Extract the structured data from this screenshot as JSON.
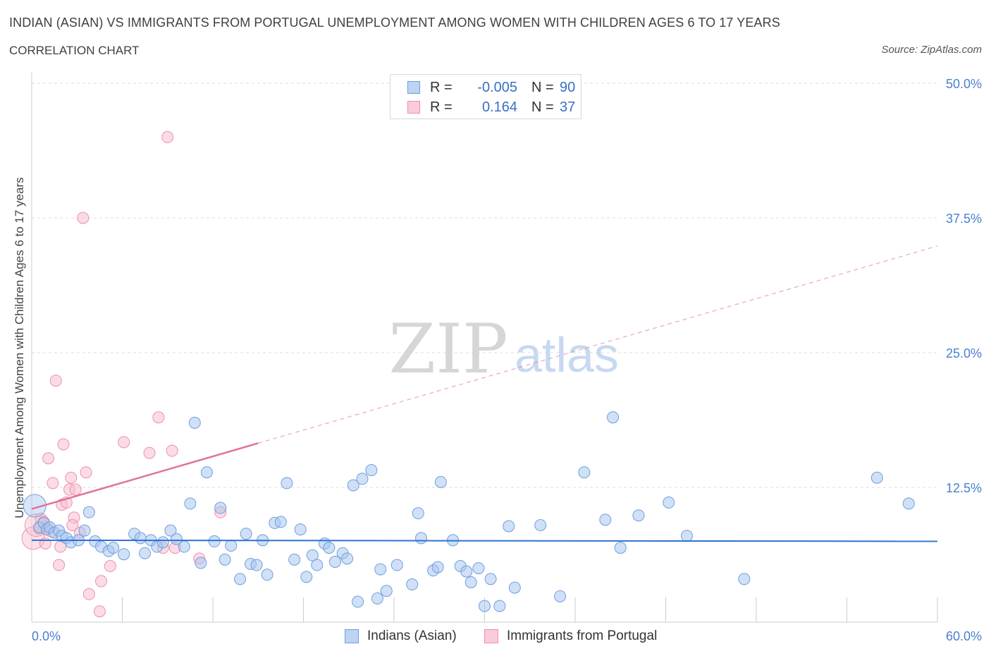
{
  "header": {
    "title": "INDIAN (ASIAN) VS IMMIGRANTS FROM PORTUGAL UNEMPLOYMENT AMONG WOMEN WITH CHILDREN AGES 6 TO 17 YEARS",
    "subtitle": "CORRELATION CHART",
    "source": "Source: ZipAtlas.com"
  },
  "legend": {
    "rows": [
      {
        "r_label": "R =",
        "r_value": "-0.005",
        "n_label": "N =",
        "n_value": "90"
      },
      {
        "r_label": "R =",
        "r_value": "0.164",
        "n_label": "N =",
        "n_value": "37"
      }
    ]
  },
  "colors": {
    "blue_fill": "#a9c6ef",
    "blue_stroke": "#6f9ee0",
    "blue_line": "#2d72d2",
    "pink_fill": "#f7bfcf",
    "pink_stroke": "#ee8fab",
    "pink_line": "#e0729b",
    "tick_text": "#4a7fd0",
    "grid": "#dcdcdc",
    "watermark": "#d6d6d6"
  },
  "chart_data": {
    "type": "scatter",
    "title": "INDIAN (ASIAN) VS IMMIGRANTS FROM PORTUGAL UNEMPLOYMENT AMONG WOMEN WITH CHILDREN AGES 6 TO 17 YEARS",
    "xlabel": "",
    "ylabel": "Unemployment Among Women with Children Ages 6 to 17 years",
    "xlim": [
      0,
      60
    ],
    "ylim": [
      0,
      50
    ],
    "x_tick_labels": [
      "0.0%",
      "60.0%"
    ],
    "y_tick_labels": [
      "12.5%",
      "25.0%",
      "37.5%",
      "50.0%"
    ],
    "y_ticks": [
      12.5,
      25.0,
      37.5,
      50.0
    ],
    "grid": true,
    "legend_position": "top-center",
    "watermark": {
      "zip": "ZIP",
      "atlas": "atlas"
    },
    "series": [
      {
        "name": "Indians (Asian)",
        "color": "#a9c6ef",
        "trend": {
          "x": [
            0,
            60
          ],
          "y": [
            7.6,
            7.5
          ],
          "style": "solid"
        },
        "points": [
          {
            "x": 0.2,
            "y": 10.8,
            "big": true
          },
          {
            "x": 0.5,
            "y": 8.8
          },
          {
            "x": 0.8,
            "y": 9.2
          },
          {
            "x": 1.0,
            "y": 8.6
          },
          {
            "x": 1.2,
            "y": 8.8
          },
          {
            "x": 1.5,
            "y": 8.3
          },
          {
            "x": 1.8,
            "y": 8.5
          },
          {
            "x": 2.0,
            "y": 8.0
          },
          {
            "x": 2.3,
            "y": 7.8
          },
          {
            "x": 2.6,
            "y": 7.4
          },
          {
            "x": 3.1,
            "y": 7.6
          },
          {
            "x": 3.5,
            "y": 8.5
          },
          {
            "x": 3.8,
            "y": 10.2
          },
          {
            "x": 4.2,
            "y": 7.5
          },
          {
            "x": 4.6,
            "y": 7.0
          },
          {
            "x": 5.1,
            "y": 6.6
          },
          {
            "x": 5.4,
            "y": 6.9
          },
          {
            "x": 6.1,
            "y": 6.3
          },
          {
            "x": 6.8,
            "y": 8.2
          },
          {
            "x": 7.2,
            "y": 7.8
          },
          {
            "x": 7.5,
            "y": 6.4
          },
          {
            "x": 7.9,
            "y": 7.6
          },
          {
            "x": 8.3,
            "y": 7.0
          },
          {
            "x": 8.7,
            "y": 7.4
          },
          {
            "x": 9.2,
            "y": 8.5
          },
          {
            "x": 9.6,
            "y": 7.7
          },
          {
            "x": 10.1,
            "y": 7.0
          },
          {
            "x": 10.5,
            "y": 11.0
          },
          {
            "x": 10.8,
            "y": 18.5
          },
          {
            "x": 11.2,
            "y": 5.5
          },
          {
            "x": 11.6,
            "y": 13.9
          },
          {
            "x": 12.1,
            "y": 7.5
          },
          {
            "x": 12.5,
            "y": 10.6
          },
          {
            "x": 12.8,
            "y": 5.8
          },
          {
            "x": 13.2,
            "y": 7.1
          },
          {
            "x": 13.8,
            "y": 4.0
          },
          {
            "x": 14.2,
            "y": 8.2
          },
          {
            "x": 14.5,
            "y": 5.4
          },
          {
            "x": 14.9,
            "y": 5.3
          },
          {
            "x": 15.3,
            "y": 7.6
          },
          {
            "x": 15.6,
            "y": 4.4
          },
          {
            "x": 16.1,
            "y": 9.2
          },
          {
            "x": 16.5,
            "y": 9.3
          },
          {
            "x": 16.9,
            "y": 12.9
          },
          {
            "x": 17.4,
            "y": 5.8
          },
          {
            "x": 17.8,
            "y": 8.6
          },
          {
            "x": 18.2,
            "y": 4.2
          },
          {
            "x": 18.6,
            "y": 6.2
          },
          {
            "x": 18.9,
            "y": 5.3
          },
          {
            "x": 19.4,
            "y": 7.3
          },
          {
            "x": 19.7,
            "y": 6.9
          },
          {
            "x": 20.1,
            "y": 5.6
          },
          {
            "x": 20.6,
            "y": 6.4
          },
          {
            "x": 20.9,
            "y": 5.9
          },
          {
            "x": 21.3,
            "y": 12.7
          },
          {
            "x": 21.6,
            "y": 1.9
          },
          {
            "x": 21.9,
            "y": 13.3
          },
          {
            "x": 22.5,
            "y": 14.1
          },
          {
            "x": 22.9,
            "y": 2.2
          },
          {
            "x": 23.1,
            "y": 4.9
          },
          {
            "x": 23.5,
            "y": 2.9
          },
          {
            "x": 24.2,
            "y": 5.3
          },
          {
            "x": 25.2,
            "y": 3.5
          },
          {
            "x": 25.6,
            "y": 10.1
          },
          {
            "x": 25.8,
            "y": 7.8
          },
          {
            "x": 26.6,
            "y": 4.8
          },
          {
            "x": 26.9,
            "y": 5.1
          },
          {
            "x": 27.1,
            "y": 13.0
          },
          {
            "x": 27.9,
            "y": 7.6
          },
          {
            "x": 28.4,
            "y": 5.2
          },
          {
            "x": 28.8,
            "y": 4.7
          },
          {
            "x": 29.1,
            "y": 3.7
          },
          {
            "x": 29.6,
            "y": 5.0
          },
          {
            "x": 30.0,
            "y": 1.5
          },
          {
            "x": 30.4,
            "y": 4.0
          },
          {
            "x": 31.0,
            "y": 1.5
          },
          {
            "x": 31.6,
            "y": 8.9
          },
          {
            "x": 32.0,
            "y": 3.2
          },
          {
            "x": 33.7,
            "y": 9.0
          },
          {
            "x": 35.0,
            "y": 2.4
          },
          {
            "x": 36.6,
            "y": 13.9
          },
          {
            "x": 38.0,
            "y": 9.5
          },
          {
            "x": 38.5,
            "y": 19.0
          },
          {
            "x": 39.0,
            "y": 6.9
          },
          {
            "x": 40.2,
            "y": 9.9
          },
          {
            "x": 42.2,
            "y": 11.1
          },
          {
            "x": 43.4,
            "y": 8.0
          },
          {
            "x": 47.2,
            "y": 4.0
          },
          {
            "x": 56.0,
            "y": 13.4
          },
          {
            "x": 58.1,
            "y": 11.0
          }
        ]
      },
      {
        "name": "Immigrants from Portugal",
        "color": "#f7bfcf",
        "trend": {
          "x": [
            0,
            60
          ],
          "y": [
            10.5,
            34.9
          ],
          "solid_until_x": 15.0,
          "style": "solid-then-dashed"
        },
        "points": [
          {
            "x": 0.1,
            "y": 7.8,
            "big": true
          },
          {
            "x": 0.3,
            "y": 9.0,
            "big": true
          },
          {
            "x": 0.6,
            "y": 9.6
          },
          {
            "x": 0.9,
            "y": 7.3
          },
          {
            "x": 1.0,
            "y": 8.8
          },
          {
            "x": 1.1,
            "y": 15.2
          },
          {
            "x": 1.4,
            "y": 12.9
          },
          {
            "x": 1.6,
            "y": 22.4
          },
          {
            "x": 1.8,
            "y": 5.3
          },
          {
            "x": 1.9,
            "y": 7.0
          },
          {
            "x": 2.0,
            "y": 10.9
          },
          {
            "x": 2.1,
            "y": 16.5
          },
          {
            "x": 2.3,
            "y": 11.1
          },
          {
            "x": 2.5,
            "y": 12.3
          },
          {
            "x": 2.6,
            "y": 13.4
          },
          {
            "x": 2.8,
            "y": 9.7
          },
          {
            "x": 2.9,
            "y": 12.3
          },
          {
            "x": 3.2,
            "y": 8.3
          },
          {
            "x": 3.4,
            "y": 37.5
          },
          {
            "x": 3.6,
            "y": 13.9
          },
          {
            "x": 3.8,
            "y": 2.6
          },
          {
            "x": 4.5,
            "y": 1.0
          },
          {
            "x": 4.6,
            "y": 3.8
          },
          {
            "x": 5.2,
            "y": 5.2
          },
          {
            "x": 6.1,
            "y": 16.7
          },
          {
            "x": 7.8,
            "y": 15.7
          },
          {
            "x": 8.4,
            "y": 19.0
          },
          {
            "x": 8.7,
            "y": 6.9
          },
          {
            "x": 9.0,
            "y": 45.0
          },
          {
            "x": 9.3,
            "y": 15.9
          },
          {
            "x": 9.5,
            "y": 6.9
          },
          {
            "x": 11.1,
            "y": 5.9
          },
          {
            "x": 12.5,
            "y": 10.2
          },
          {
            "x": 0.5,
            "y": 8.7
          },
          {
            "x": 0.8,
            "y": 9.3
          },
          {
            "x": 1.3,
            "y": 8.4
          },
          {
            "x": 2.7,
            "y": 9.0
          }
        ]
      }
    ]
  },
  "bottom_legend": {
    "items": [
      {
        "label": "Indians (Asian)"
      },
      {
        "label": "Immigrants from Portugal"
      }
    ]
  }
}
